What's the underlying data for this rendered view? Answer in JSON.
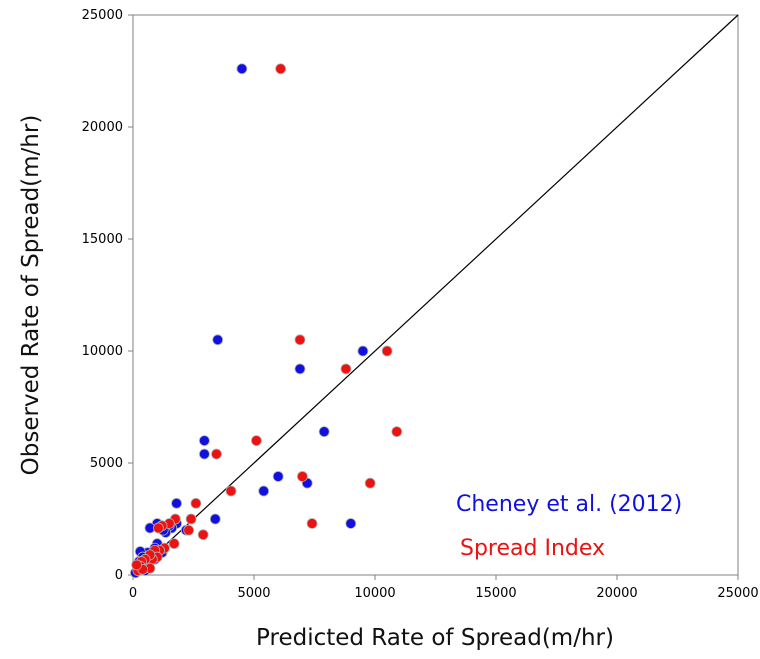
{
  "chart_data": {
    "type": "scatter",
    "title": "",
    "xlabel": "Predicted Rate of Spread(m/hr)",
    "ylabel": "Observed Rate of Spread(m/hr)",
    "xlim": [
      0,
      25000
    ],
    "ylim": [
      0,
      25000
    ],
    "xticks": [
      0,
      5000,
      10000,
      15000,
      20000,
      25000
    ],
    "yticks": [
      0,
      5000,
      10000,
      15000,
      20000,
      25000
    ],
    "grid": false,
    "legend": "bottom-right",
    "reference_line": {
      "from": [
        0,
        0
      ],
      "to": [
        25000,
        25000
      ],
      "color": "#000000"
    },
    "series": [
      {
        "name": "Cheney et al. (2012)",
        "color": "#1010e0",
        "points": [
          [
            4500,
            22600
          ],
          [
            3500,
            10500
          ],
          [
            9500,
            10000
          ],
          [
            6900,
            9200
          ],
          [
            7900,
            6400
          ],
          [
            2950,
            6000
          ],
          [
            2950,
            5400
          ],
          [
            6000,
            4400
          ],
          [
            7200,
            4100
          ],
          [
            5400,
            3750
          ],
          [
            9000,
            2300
          ],
          [
            3400,
            2500
          ],
          [
            1800,
            3200
          ],
          [
            1800,
            2300
          ],
          [
            1600,
            2100
          ],
          [
            1500,
            2200
          ],
          [
            1350,
            1900
          ],
          [
            1000,
            2300
          ],
          [
            1250,
            2000
          ],
          [
            700,
            2100
          ],
          [
            2200,
            2000
          ],
          [
            1000,
            1400
          ],
          [
            900,
            1200
          ],
          [
            1200,
            1000
          ],
          [
            600,
            1000
          ],
          [
            300,
            1050
          ],
          [
            400,
            800
          ],
          [
            250,
            600
          ],
          [
            600,
            600
          ],
          [
            900,
            700
          ],
          [
            200,
            300
          ],
          [
            500,
            200
          ],
          [
            100,
            100
          ]
        ]
      },
      {
        "name": "Spread Index",
        "color": "#ee1111",
        "points": [
          [
            6100,
            22600
          ],
          [
            6900,
            10500
          ],
          [
            10500,
            10000
          ],
          [
            8800,
            9200
          ],
          [
            10900,
            6400
          ],
          [
            5100,
            6000
          ],
          [
            3450,
            5400
          ],
          [
            7000,
            4400
          ],
          [
            9800,
            4100
          ],
          [
            4050,
            3750
          ],
          [
            7400,
            2300
          ],
          [
            2600,
            3200
          ],
          [
            2400,
            2500
          ],
          [
            1750,
            2500
          ],
          [
            1500,
            2300
          ],
          [
            1200,
            2200
          ],
          [
            1050,
            2100
          ],
          [
            2300,
            2000
          ],
          [
            2900,
            1800
          ],
          [
            1700,
            1400
          ],
          [
            1300,
            1200
          ],
          [
            1100,
            1100
          ],
          [
            900,
            1100
          ],
          [
            1000,
            800
          ],
          [
            800,
            700
          ],
          [
            700,
            900
          ],
          [
            500,
            700
          ],
          [
            350,
            600
          ],
          [
            300,
            400
          ],
          [
            200,
            200
          ],
          [
            700,
            300
          ],
          [
            400,
            250
          ],
          [
            150,
            450
          ]
        ]
      }
    ]
  }
}
